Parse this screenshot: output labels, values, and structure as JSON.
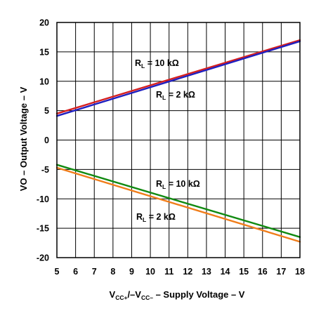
{
  "chart_data": {
    "type": "line",
    "x_ticks": [
      5,
      6,
      7,
      8,
      9,
      10,
      11,
      12,
      13,
      14,
      15,
      16,
      17,
      18
    ],
    "y_ticks": [
      -20,
      -15,
      -10,
      -5,
      0,
      5,
      10,
      15,
      20
    ],
    "xlim": [
      5,
      18
    ],
    "ylim": [
      -20,
      20
    ],
    "grid": true,
    "legend": "none",
    "xlabel": {
      "main": "V",
      "sub1": "CC+",
      "mid": "/–V",
      "sub2": "CC–",
      "tail": " – Supply Voltage – V"
    },
    "ylabel": "VO – Output Voltage – V",
    "series": [
      {
        "color": "#d62020",
        "x": [
          5,
          18
        ],
        "y": [
          4.5,
          17.0
        ]
      },
      {
        "color": "#2020c0",
        "x": [
          5,
          18
        ],
        "y": [
          4.1,
          16.8
        ]
      },
      {
        "color": "#118a11",
        "x": [
          5,
          18
        ],
        "y": [
          -4.2,
          -16.5
        ]
      },
      {
        "color": "#f07d1a",
        "x": [
          5,
          18
        ],
        "y": [
          -4.7,
          -17.3
        ]
      }
    ],
    "annotations": [
      {
        "id": "pos10k",
        "R": "R",
        "sub": "L",
        "text": " = 10 kΩ"
      },
      {
        "id": "pos2k",
        "R": "R",
        "sub": "L",
        "text": " = 2 kΩ"
      },
      {
        "id": "neg10k",
        "R": "R",
        "sub": "L",
        "text": " = 10 kΩ"
      },
      {
        "id": "neg2k",
        "R": "R",
        "sub": "L",
        "text": " = 2 kΩ"
      }
    ]
  }
}
